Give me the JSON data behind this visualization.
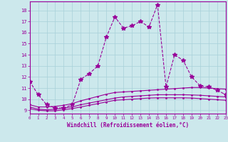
{
  "xlabel": "Windchill (Refroidissement éolien,°C)",
  "background_color": "#cce8ec",
  "line_color": "#990099",
  "xlim": [
    0,
    23
  ],
  "ylim": [
    8.7,
    18.8
  ],
  "xticks": [
    0,
    1,
    2,
    3,
    4,
    5,
    6,
    7,
    8,
    9,
    10,
    11,
    12,
    13,
    14,
    15,
    16,
    17,
    18,
    19,
    20,
    21,
    22,
    23
  ],
  "yticks": [
    9,
    10,
    11,
    12,
    13,
    14,
    15,
    16,
    17,
    18
  ],
  "series": [
    {
      "x": [
        0,
        1,
        2,
        3,
        4,
        5,
        6,
        7,
        8,
        9,
        10,
        11,
        12,
        13,
        14,
        15,
        16,
        17,
        18,
        19,
        20,
        21,
        22,
        23
      ],
      "y": [
        11.6,
        10.4,
        9.5,
        9.2,
        9.2,
        9.5,
        11.8,
        12.3,
        13.0,
        15.6,
        17.4,
        16.4,
        16.6,
        17.0,
        16.5,
        18.5,
        11.1,
        14.0,
        13.5,
        12.0,
        11.2,
        11.1,
        10.8,
        10.4
      ],
      "marker": "*",
      "linestyle": "--",
      "markersize": 4
    },
    {
      "x": [
        0,
        1,
        2,
        3,
        4,
        5,
        6,
        7,
        8,
        9,
        10,
        11,
        12,
        13,
        14,
        15,
        16,
        17,
        18,
        19,
        20,
        21,
        22,
        23
      ],
      "y": [
        9.5,
        9.3,
        9.3,
        9.35,
        9.45,
        9.6,
        9.85,
        10.05,
        10.25,
        10.45,
        10.6,
        10.65,
        10.7,
        10.75,
        10.8,
        10.85,
        10.9,
        10.95,
        11.0,
        11.05,
        11.05,
        11.0,
        10.95,
        10.9
      ],
      "marker": ".",
      "linestyle": "-",
      "markersize": 2
    },
    {
      "x": [
        0,
        1,
        2,
        3,
        4,
        5,
        6,
        7,
        8,
        9,
        10,
        11,
        12,
        13,
        14,
        15,
        16,
        17,
        18,
        19,
        20,
        21,
        22,
        23
      ],
      "y": [
        9.3,
        9.1,
        9.05,
        9.1,
        9.2,
        9.3,
        9.5,
        9.65,
        9.8,
        9.95,
        10.1,
        10.2,
        10.25,
        10.3,
        10.35,
        10.4,
        10.4,
        10.4,
        10.4,
        10.38,
        10.35,
        10.3,
        10.25,
        10.2
      ],
      "marker": ".",
      "linestyle": "-",
      "markersize": 2
    },
    {
      "x": [
        0,
        1,
        2,
        3,
        4,
        5,
        6,
        7,
        8,
        9,
        10,
        11,
        12,
        13,
        14,
        15,
        16,
        17,
        18,
        19,
        20,
        21,
        22,
        23
      ],
      "y": [
        9.15,
        9.0,
        8.95,
        8.95,
        9.05,
        9.15,
        9.3,
        9.45,
        9.6,
        9.75,
        9.9,
        9.95,
        10.0,
        10.05,
        10.1,
        10.12,
        10.12,
        10.12,
        10.12,
        10.1,
        10.05,
        10.0,
        9.95,
        9.9
      ],
      "marker": ".",
      "linestyle": "-",
      "markersize": 2
    }
  ]
}
